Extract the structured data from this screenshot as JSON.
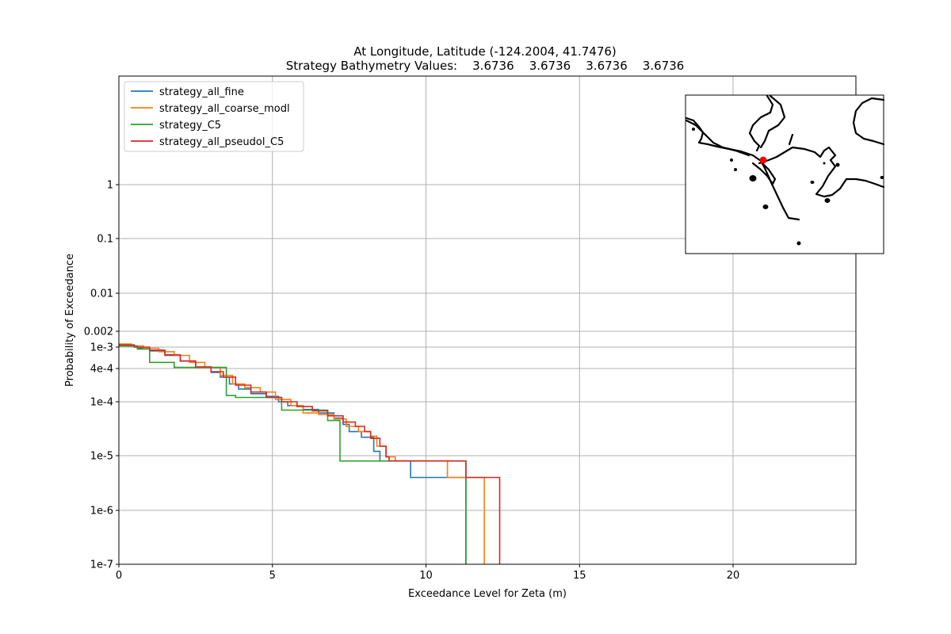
{
  "chart_data": {
    "type": "line",
    "title_line1": "At Longitude, Latitude (-124.2004,  41.7476)",
    "title_line2": "Strategy Bathymetry Values:    3.6736    3.6736    3.6736    3.6736",
    "xlabel": "Exceedance Level for Zeta (m)",
    "ylabel": "Probability of Exceedance",
    "xlim": [
      0,
      24
    ],
    "x_ticks": [
      {
        "value": 0,
        "label": "0"
      },
      {
        "value": 5,
        "label": "5"
      },
      {
        "value": 10,
        "label": "10"
      },
      {
        "value": 15,
        "label": "15"
      },
      {
        "value": 20,
        "label": "20"
      }
    ],
    "y_ticks": [
      {
        "value": 1,
        "label": "1"
      },
      {
        "value": 0.1,
        "label": "0.1"
      },
      {
        "value": 0.01,
        "label": "0.01"
      },
      {
        "value": 0.002,
        "label": "0.002"
      },
      {
        "value": 0.001,
        "label": "1e-3"
      },
      {
        "value": 0.0004,
        "label": "4e-4"
      },
      {
        "value": 0.0001,
        "label": "1e-4"
      },
      {
        "value": 1e-05,
        "label": "1e-5"
      },
      {
        "value": 1e-06,
        "label": "1e-6"
      },
      {
        "value": 1e-07,
        "label": "1e-7"
      }
    ],
    "grid": true,
    "legend_position": "top-left",
    "series": [
      {
        "name": "strategy_all_fine",
        "color": "#1f77b4",
        "points": [
          [
            0,
            0.00112
          ],
          [
            0.3,
            0.00105
          ],
          [
            0.6,
            0.00095
          ],
          [
            1.0,
            0.00085
          ],
          [
            1.5,
            0.0007
          ],
          [
            2.0,
            0.00055
          ],
          [
            2.5,
            0.00042
          ],
          [
            3.0,
            0.00034
          ],
          [
            3.3,
            0.00028
          ],
          [
            3.6,
            0.00021
          ],
          [
            3.9,
            0.00017
          ],
          [
            4.3,
            0.00014
          ],
          [
            4.8,
            0.000125
          ],
          [
            5.2,
            0.0001
          ],
          [
            5.5,
            8.5e-05
          ],
          [
            6.0,
            7.2e-05
          ],
          [
            6.5,
            6.2e-05
          ],
          [
            7.0,
            5e-05
          ],
          [
            7.3,
            3.8e-05
          ],
          [
            7.5,
            2.8e-05
          ],
          [
            7.9,
            2.2e-05
          ],
          [
            8.3,
            1.2e-05
          ],
          [
            8.5,
            8e-06
          ],
          [
            9.5,
            4e-06
          ],
          [
            11.3,
            4e-06
          ],
          [
            11.3,
            1e-07
          ]
        ]
      },
      {
        "name": "strategy_all_coarse_modl",
        "color": "#ff7f0e",
        "points": [
          [
            0,
            0.00115
          ],
          [
            0.4,
            0.00105
          ],
          [
            0.8,
            0.00095
          ],
          [
            1.3,
            0.00082
          ],
          [
            1.8,
            0.0007
          ],
          [
            2.3,
            0.00052
          ],
          [
            2.8,
            0.00042
          ],
          [
            3.3,
            0.0003
          ],
          [
            3.7,
            0.00021
          ],
          [
            4.1,
            0.00018
          ],
          [
            4.6,
            0.00015
          ],
          [
            5.1,
            0.00011
          ],
          [
            5.6,
            8.5e-05
          ],
          [
            6.0,
            6.2e-05
          ],
          [
            6.5,
            5.8e-05
          ],
          [
            7.0,
            4.8e-05
          ],
          [
            7.4,
            3.5e-05
          ],
          [
            7.8,
            2.8e-05
          ],
          [
            8.2,
            2.3e-05
          ],
          [
            8.4,
            1.5e-05
          ],
          [
            8.7,
            9.5e-06
          ],
          [
            9.0,
            8e-06
          ],
          [
            10.7,
            8e-06
          ],
          [
            10.7,
            4e-06
          ],
          [
            11.9,
            4e-06
          ],
          [
            11.9,
            1e-07
          ]
        ]
      },
      {
        "name": "strategy_C5",
        "color": "#2ca02c",
        "points": [
          [
            0,
            0.00105
          ],
          [
            0.6,
            0.00092
          ],
          [
            1.0,
            0.00052
          ],
          [
            1.8,
            0.00042
          ],
          [
            3.5,
            0.00036
          ],
          [
            3.5,
            0.00013
          ],
          [
            3.8,
            0.00012
          ],
          [
            5.3,
            0.00012
          ],
          [
            5.3,
            7e-05
          ],
          [
            6.8,
            7e-05
          ],
          [
            6.8,
            4.5e-05
          ],
          [
            7.2,
            4.5e-05
          ],
          [
            7.2,
            8e-06
          ],
          [
            11.3,
            8e-06
          ],
          [
            11.3,
            1e-07
          ]
        ]
      },
      {
        "name": "strategy_all_pseudol_C5",
        "color": "#d62728",
        "points": [
          [
            0,
            0.0011
          ],
          [
            0.5,
            0.001
          ],
          [
            1.0,
            0.00088
          ],
          [
            1.5,
            0.00072
          ],
          [
            2.0,
            0.00055
          ],
          [
            2.5,
            0.00043
          ],
          [
            3.0,
            0.00035
          ],
          [
            3.4,
            0.00028
          ],
          [
            3.8,
            0.0002
          ],
          [
            4.3,
            0.00015
          ],
          [
            4.8,
            0.00012
          ],
          [
            5.3,
            0.0001
          ],
          [
            5.8,
            8.2e-05
          ],
          [
            6.3,
            6.8e-05
          ],
          [
            6.8,
            5.5e-05
          ],
          [
            7.3,
            4.2e-05
          ],
          [
            7.7,
            3.5e-05
          ],
          [
            8.0,
            2.8e-05
          ],
          [
            8.2,
            2.1e-05
          ],
          [
            8.5,
            1.5e-05
          ],
          [
            8.7,
            9.5e-06
          ],
          [
            8.8,
            8e-06
          ],
          [
            11.3,
            8e-06
          ],
          [
            11.3,
            4e-06
          ],
          [
            12.4,
            4e-06
          ],
          [
            12.4,
            1e-07
          ]
        ]
      }
    ]
  }
}
